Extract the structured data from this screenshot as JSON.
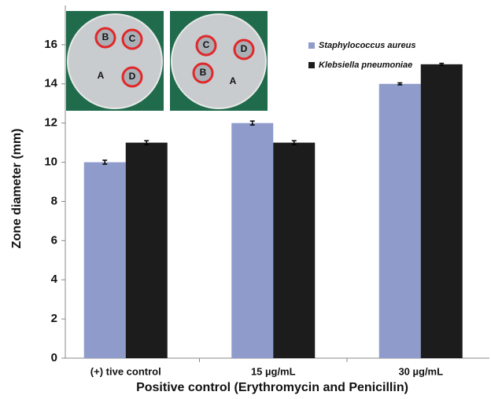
{
  "chart_data": {
    "type": "bar",
    "x_label": "Positive control (Erythromycin and Penicillin)",
    "y_label": "Zone diameter (mm)",
    "categories": [
      "(+) tive control",
      "15 µg/mL",
      "30 µg/mL"
    ],
    "series": [
      {
        "name": "Staphylococcus aureus",
        "color": "#8f9ccb",
        "values": [
          10,
          12,
          14
        ],
        "errors": [
          0.1,
          0.1,
          0.05
        ]
      },
      {
        "name": "Klebsiella pneumoniae",
        "color": "#1c1c1c",
        "values": [
          11,
          11,
          15
        ],
        "errors": [
          0.1,
          0.1,
          0.05
        ]
      }
    ],
    "ylim": [
      0,
      18
    ],
    "yticks": [
      0,
      2,
      4,
      6,
      8,
      10,
      12,
      14,
      16
    ],
    "insets": [
      {
        "labels": [
          "B",
          "C",
          "A",
          "D"
        ]
      },
      {
        "labels": [
          "C",
          "D",
          "B",
          "A"
        ]
      }
    ]
  }
}
